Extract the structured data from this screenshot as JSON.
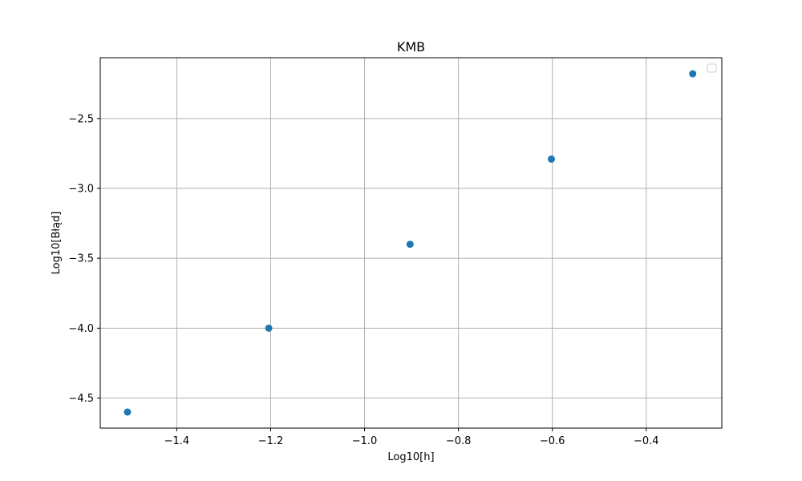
{
  "chart_data": {
    "type": "scatter",
    "title": "KMB",
    "xlabel": "Log10[h]",
    "ylabel": "Log10[Błąd]",
    "xlim": [
      -1.563,
      -0.239
    ],
    "ylim": [
      -4.715,
      -2.065
    ],
    "xticks": [
      -1.4,
      -1.2,
      -1.0,
      -0.8,
      -0.6,
      -0.4
    ],
    "xtick_labels": [
      "−1.4",
      "−1.2",
      "−1.0",
      "−0.8",
      "−0.6",
      "−0.4"
    ],
    "yticks": [
      -4.5,
      -4.0,
      -3.5,
      -3.0,
      -2.5
    ],
    "ytick_labels": [
      "−4.5",
      "−4.0",
      "−3.5",
      "−3.0",
      "−2.5"
    ],
    "grid": true,
    "legend": "top-right, empty",
    "series": [
      {
        "color": "#1f77b4",
        "x": [
          -1.505,
          -1.204,
          -0.903,
          -0.602,
          -0.301
        ],
        "y": [
          -4.6,
          -4.0,
          -3.4,
          -2.79,
          -2.18
        ]
      }
    ]
  }
}
